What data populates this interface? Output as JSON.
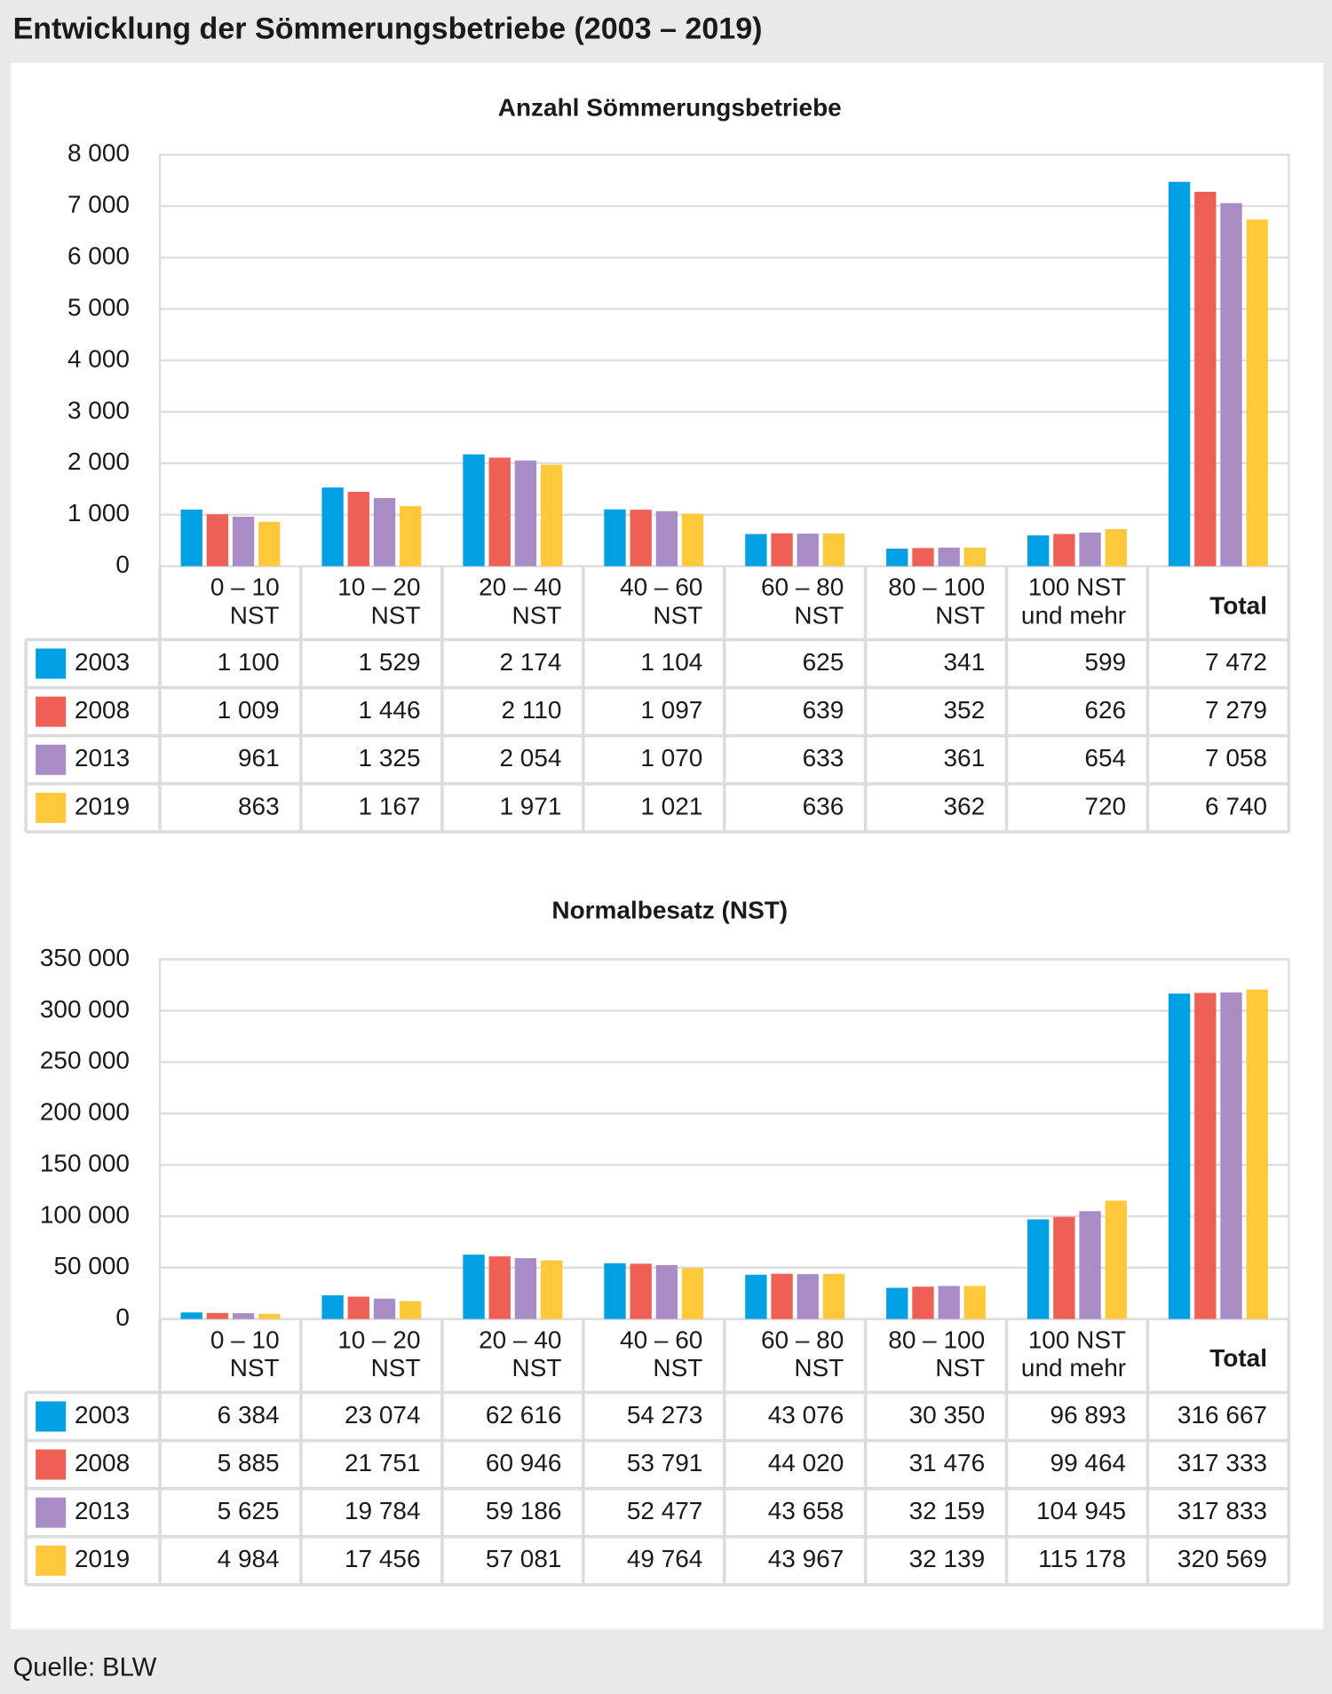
{
  "title": "Entwicklung der Sömmerungsbetriebe (2003 – 2019)",
  "source": "Quelle: BLW",
  "chart_data": [
    {
      "type": "bar",
      "title": "Anzahl Sömmerungsbetriebe",
      "categories": [
        [
          "0 – 10",
          "NST"
        ],
        [
          "10 – 20",
          "NST"
        ],
        [
          "20 – 40",
          "NST"
        ],
        [
          "40 – 60",
          "NST"
        ],
        [
          "60 – 80",
          "NST"
        ],
        [
          "80 – 100",
          "NST"
        ],
        [
          "100 NST",
          "und mehr"
        ],
        [
          "Total"
        ]
      ],
      "ylim": [
        0,
        8000
      ],
      "yticks": [
        0,
        {
          "value": 1000,
          "label": "1 000"
        },
        {
          "value": 2000,
          "label": "2 000"
        },
        {
          "value": 3000,
          "label": "3 000"
        },
        {
          "value": 4000,
          "label": "4 000"
        },
        {
          "value": 5000,
          "label": "5 000"
        },
        {
          "value": 6000,
          "label": "6 000"
        },
        {
          "value": 7000,
          "label": "7 000"
        },
        {
          "value": 8000,
          "label": "8 000"
        }
      ],
      "grid": true,
      "series": [
        {
          "name": "2003",
          "color": "#00a0e3",
          "values": [
            1100,
            1529,
            2174,
            1104,
            625,
            341,
            599,
            7472
          ],
          "value_labels": [
            "1 100",
            "1 529",
            "2 174",
            "1 104",
            "625",
            "341",
            "599",
            "7 472"
          ]
        },
        {
          "name": "2008",
          "color": "#ee5f55",
          "values": [
            1009,
            1446,
            2110,
            1097,
            639,
            352,
            626,
            7279
          ],
          "value_labels": [
            "1 009",
            "1 446",
            "2 110",
            "1 097",
            "639",
            "352",
            "626",
            "7 279"
          ]
        },
        {
          "name": "2013",
          "color": "#a98cc6",
          "values": [
            961,
            1325,
            2054,
            1070,
            633,
            361,
            654,
            7058
          ],
          "value_labels": [
            "961",
            "1 325",
            "2 054",
            "1 070",
            "633",
            "361",
            "654",
            "7 058"
          ]
        },
        {
          "name": "2019",
          "color": "#fdc93a",
          "values": [
            863,
            1167,
            1971,
            1021,
            636,
            362,
            720,
            6740
          ],
          "value_labels": [
            "863",
            "1 167",
            "1 971",
            "1 021",
            "636",
            "362",
            "720",
            "6 740"
          ]
        }
      ]
    },
    {
      "type": "bar",
      "title": "Normalbesatz (NST)",
      "categories": [
        [
          "0 – 10",
          "NST"
        ],
        [
          "10 – 20",
          "NST"
        ],
        [
          "20 – 40",
          "NST"
        ],
        [
          "40 – 60",
          "NST"
        ],
        [
          "60 – 80",
          "NST"
        ],
        [
          "80 – 100",
          "NST"
        ],
        [
          "100 NST",
          "und mehr"
        ],
        [
          "Total"
        ]
      ],
      "ylim": [
        0,
        350000
      ],
      "yticks": [
        0,
        {
          "value": 50000,
          "label": "50 000"
        },
        {
          "value": 100000,
          "label": "100 000"
        },
        {
          "value": 150000,
          "label": "150 000"
        },
        {
          "value": 200000,
          "label": "200 000"
        },
        {
          "value": 250000,
          "label": "250 000"
        },
        {
          "value": 300000,
          "label": "300 000"
        },
        {
          "value": 350000,
          "label": "350 000"
        }
      ],
      "grid": true,
      "series": [
        {
          "name": "2003",
          "color": "#00a0e3",
          "values": [
            6384,
            23074,
            62616,
            54273,
            43076,
            30350,
            96893,
            316667
          ],
          "value_labels": [
            "6 384",
            "23 074",
            "62 616",
            "54 273",
            "43 076",
            "30 350",
            "96 893",
            "316 667"
          ]
        },
        {
          "name": "2008",
          "color": "#ee5f55",
          "values": [
            5885,
            21751,
            60946,
            53791,
            44020,
            31476,
            99464,
            317333
          ],
          "value_labels": [
            "5 885",
            "21 751",
            "60 946",
            "53 791",
            "44 020",
            "31 476",
            "99 464",
            "317 333"
          ]
        },
        {
          "name": "2013",
          "color": "#a98cc6",
          "values": [
            5625,
            19784,
            59186,
            52477,
            43658,
            32159,
            104945,
            317833
          ],
          "value_labels": [
            "5 625",
            "19 784",
            "59 186",
            "52 477",
            "43 658",
            "32 159",
            "104 945",
            "317 833"
          ]
        },
        {
          "name": "2019",
          "color": "#fdc93a",
          "values": [
            4984,
            17456,
            57081,
            49764,
            43967,
            32139,
            115178,
            320569
          ],
          "value_labels": [
            "4 984",
            "17 456",
            "57 081",
            "49 764",
            "43 967",
            "32 139",
            "115 178",
            "320 569"
          ]
        }
      ]
    }
  ]
}
